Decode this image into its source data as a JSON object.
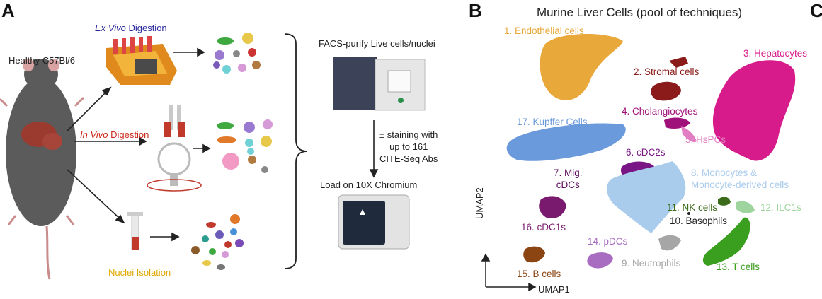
{
  "panels": {
    "a": "A",
    "b": "B",
    "c": "C"
  },
  "workflow": {
    "mouse_label": "Healthy C57Bl/6",
    "ex_vivo_italic": "Ex Vivo",
    "ex_vivo_rest": " Digestion",
    "in_vivo_italic": "In Vivo",
    "in_vivo_rest": " Digestion",
    "nuclei_label": "Nuclei Isolation",
    "facs_label": "FACS-purify Live cells/nuclei",
    "staining_line1": "± staining with",
    "staining_line2": "up to 161",
    "staining_line3": "CITE-Seq Abs",
    "load_label": "Load on 10X Chromium"
  },
  "umap": {
    "title": "Murine Liver Cells (pool of techniques)",
    "x_axis": "UMAP1",
    "y_axis": "UMAP2",
    "clusters": [
      {
        "name": "1. Endothelial cells",
        "color": "#E8A83A"
      },
      {
        "name": "2. Stromal cells",
        "color": "#8B1A1A"
      },
      {
        "name": "3. Hepatocytes",
        "color": "#D81B8A"
      },
      {
        "name": "4. Cholangiocytes",
        "color": "#A0107A"
      },
      {
        "name": "5. HsPCs",
        "color": "#E27FC4"
      },
      {
        "name": "6. cDC2s",
        "color": "#7A1585"
      },
      {
        "name": "7. Mig.",
        "name2": "cDCs",
        "color": "#5E0F5E"
      },
      {
        "name": "8. Monocytes &",
        "name2": "Monocyte-derived cells",
        "color": "#A9CBEC"
      },
      {
        "name": "9. Neutrophils",
        "color": "#A6A6A6"
      },
      {
        "name": "10. Basophils",
        "color": "#222222"
      },
      {
        "name": "11. NK cells",
        "color": "#3C6B1A"
      },
      {
        "name": "12. ILC1s",
        "color": "#9ED49E"
      },
      {
        "name": "13. T cells",
        "color": "#3A9E1E"
      },
      {
        "name": "14. pDCs",
        "color": "#A86CC1"
      },
      {
        "name": "15. B cells",
        "color": "#8B4513"
      },
      {
        "name": "16. cDC1s",
        "color": "#7A1A6E"
      },
      {
        "name": "17. Kupffer Cells",
        "color": "#6A9ADB"
      }
    ]
  }
}
